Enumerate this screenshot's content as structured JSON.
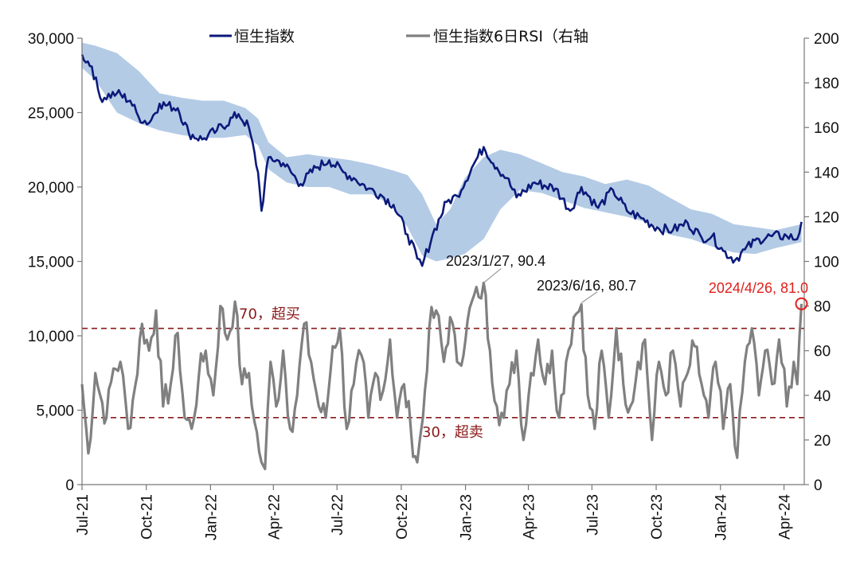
{
  "chart_data": {
    "type": "line",
    "title": "",
    "legend": [
      {
        "name": "恒生指数",
        "color": "#0b1a7a"
      },
      {
        "name": "恒生指数6日RSI（右轴",
        "color": "#808080"
      }
    ],
    "legend_position": "top-center",
    "x_axis": {
      "ticks": [
        "Jul-21",
        "Oct-21",
        "Jan-22",
        "Apr-22",
        "Jul-22",
        "Oct-22",
        "Jan-23",
        "Apr-23",
        "Jul-23",
        "Oct-23",
        "Jan-24",
        "Apr-24"
      ],
      "range": [
        "2021-07-01",
        "2024-04-30"
      ]
    },
    "left_axis": {
      "ylim": [
        0,
        30000
      ],
      "ticks": [
        "0",
        "5,000",
        "10,000",
        "15,000",
        "20,000",
        "25,000",
        "30,000"
      ]
    },
    "right_axis": {
      "ylim": [
        0,
        200
      ],
      "ticks": [
        "0",
        "20",
        "40",
        "60",
        "80",
        "100",
        "120",
        "140",
        "160",
        "180",
        "200"
      ]
    },
    "series": [
      {
        "name": "恒生指数",
        "axis": "left",
        "color": "#0b1a7a",
        "x": [
          "2021-07-01",
          "2021-07-15",
          "2021-07-27",
          "2021-08-20",
          "2021-09-08",
          "2021-09-20",
          "2021-10-05",
          "2021-10-20",
          "2021-11-15",
          "2021-12-01",
          "2021-12-20",
          "2022-01-10",
          "2022-02-10",
          "2022-02-25",
          "2022-03-10",
          "2022-03-15",
          "2022-03-25",
          "2022-04-15",
          "2022-05-10",
          "2022-06-01",
          "2022-06-20",
          "2022-07-10",
          "2022-07-25",
          "2022-08-15",
          "2022-09-01",
          "2022-09-20",
          "2022-10-10",
          "2022-10-24",
          "2022-10-31",
          "2022-11-15",
          "2022-12-05",
          "2022-12-20",
          "2023-01-10",
          "2023-01-27",
          "2023-02-15",
          "2023-03-01",
          "2023-03-15",
          "2023-04-10",
          "2023-05-10",
          "2023-05-31",
          "2023-06-16",
          "2023-07-10",
          "2023-07-31",
          "2023-08-20",
          "2023-09-10",
          "2023-10-05",
          "2023-10-25",
          "2023-11-15",
          "2023-12-05",
          "2023-12-20",
          "2024-01-05",
          "2024-01-22",
          "2024-02-05",
          "2024-02-25",
          "2024-03-15",
          "2024-04-05",
          "2024-04-20",
          "2024-04-26"
        ],
        "values": [
          28900,
          28100,
          26000,
          26300,
          25800,
          24700,
          24300,
          25600,
          25300,
          23600,
          23200,
          23800,
          24900,
          24000,
          21000,
          18400,
          22000,
          21600,
          20200,
          21300,
          21800,
          21000,
          20600,
          19900,
          19500,
          18800,
          16800,
          15200,
          14700,
          16800,
          19000,
          19400,
          21300,
          22690,
          21300,
          20600,
          19300,
          20300,
          19900,
          18400,
          20000,
          18600,
          19800,
          18400,
          17900,
          17200,
          17100,
          17600,
          16600,
          16700,
          15700,
          15100,
          15800,
          16500,
          16700,
          16700,
          16500,
          17650
        ]
      },
      {
        "name": "恒生指数6日RSI（右轴",
        "axis": "right",
        "color": "#808080",
        "x": [
          "2021-07-01",
          "2021-07-10",
          "2021-07-20",
          "2021-07-27",
          "2021-08-05",
          "2021-08-15",
          "2021-08-25",
          "2021-09-05",
          "2021-09-15",
          "2021-09-25",
          "2021-10-05",
          "2021-10-15",
          "2021-10-25",
          "2021-11-05",
          "2021-11-15",
          "2021-11-25",
          "2021-12-05",
          "2021-12-15",
          "2021-12-25",
          "2022-01-05",
          "2022-01-15",
          "2022-01-25",
          "2022-02-05",
          "2022-02-15",
          "2022-02-25",
          "2022-03-05",
          "2022-03-15",
          "2022-03-20",
          "2022-03-28",
          "2022-04-05",
          "2022-04-15",
          "2022-04-25",
          "2022-05-05",
          "2022-05-15",
          "2022-05-25",
          "2022-06-05",
          "2022-06-15",
          "2022-06-25",
          "2022-07-05",
          "2022-07-15",
          "2022-07-25",
          "2022-08-05",
          "2022-08-15",
          "2022-08-25",
          "2022-09-05",
          "2022-09-15",
          "2022-09-25",
          "2022-10-05",
          "2022-10-15",
          "2022-10-24",
          "2022-11-01",
          "2022-11-10",
          "2022-11-20",
          "2022-12-01",
          "2022-12-10",
          "2022-12-20",
          "2023-01-01",
          "2023-01-10",
          "2023-01-20",
          "2023-01-27",
          "2023-02-05",
          "2023-02-15",
          "2023-02-25",
          "2023-03-05",
          "2023-03-15",
          "2023-03-25",
          "2023-04-05",
          "2023-04-15",
          "2023-04-25",
          "2023-05-05",
          "2023-05-15",
          "2023-05-25",
          "2023-06-05",
          "2023-06-16",
          "2023-06-25",
          "2023-07-05",
          "2023-07-15",
          "2023-07-25",
          "2023-08-05",
          "2023-08-15",
          "2023-08-25",
          "2023-09-05",
          "2023-09-15",
          "2023-09-25",
          "2023-10-05",
          "2023-10-15",
          "2023-10-25",
          "2023-11-05",
          "2023-11-15",
          "2023-11-25",
          "2023-12-05",
          "2023-12-15",
          "2023-12-25",
          "2024-01-05",
          "2024-01-15",
          "2024-01-25",
          "2024-02-05",
          "2024-02-15",
          "2024-02-25",
          "2024-03-05",
          "2024-03-15",
          "2024-03-25",
          "2024-04-05",
          "2024-04-15",
          "2024-04-20",
          "2024-04-26"
        ],
        "values": [
          45,
          14,
          50,
          40,
          30,
          52,
          55,
          25,
          44,
          72,
          60,
          78,
          35,
          45,
          68,
          30,
          25,
          48,
          60,
          40,
          80,
          65,
          82,
          45,
          50,
          28,
          10,
          7,
          55,
          35,
          60,
          25,
          40,
          72,
          55,
          35,
          30,
          62,
          70,
          25,
          45,
          58,
          30,
          50,
          42,
          65,
          30,
          45,
          24,
          10,
          30,
          70,
          78,
          55,
          75,
          55,
          65,
          82,
          84,
          90.4,
          60,
          35,
          30,
          45,
          60,
          20,
          50,
          65,
          45,
          60,
          30,
          55,
          75,
          80.7,
          40,
          25,
          60,
          30,
          70,
          45,
          35,
          55,
          65,
          20,
          55,
          40,
          60,
          35,
          50,
          62,
          45,
          30,
          55,
          25,
          45,
          12,
          55,
          70,
          40,
          60,
          45,
          65,
          35,
          55,
          45,
          81.0
        ]
      }
    ],
    "band": {
      "axis": "left",
      "color": "#b4cbe6",
      "x": [
        "2021-07-01",
        "2021-07-20",
        "2021-08-20",
        "2021-09-20",
        "2021-10-20",
        "2021-11-20",
        "2021-12-20",
        "2022-01-20",
        "2022-02-20",
        "2022-03-10",
        "2022-03-25",
        "2022-04-20",
        "2022-05-20",
        "2022-06-20",
        "2022-07-20",
        "2022-08-20",
        "2022-09-20",
        "2022-10-10",
        "2022-10-31",
        "2022-11-20",
        "2022-12-10",
        "2022-12-31",
        "2023-01-27",
        "2023-02-20",
        "2023-03-20",
        "2023-04-20",
        "2023-05-20",
        "2023-06-20",
        "2023-07-20",
        "2023-08-20",
        "2023-09-20",
        "2023-10-20",
        "2023-11-20",
        "2023-12-20",
        "2024-01-20",
        "2024-02-20",
        "2024-03-20",
        "2024-04-26"
      ],
      "upper": [
        29700,
        29500,
        29000,
        27800,
        26300,
        26000,
        25800,
        25800,
        25300,
        24600,
        23000,
        22000,
        22200,
        22000,
        21800,
        21500,
        21100,
        20800,
        19500,
        17500,
        18500,
        20600,
        22000,
        22500,
        22200,
        21600,
        21000,
        20700,
        20200,
        20500,
        20100,
        19300,
        18500,
        18200,
        17500,
        17300,
        17100,
        17500
      ],
      "lower": [
        28000,
        27200,
        25000,
        24300,
        23800,
        23500,
        23300,
        23300,
        23500,
        22800,
        21200,
        20300,
        20000,
        20000,
        19500,
        19500,
        18700,
        17300,
        15400,
        15000,
        15200,
        15500,
        16500,
        18500,
        19800,
        19600,
        19100,
        18600,
        18300,
        18000,
        17600,
        16800,
        16500,
        16000,
        15600,
        15500,
        15900,
        16300
      ]
    },
    "thresholds": [
      {
        "value": 70,
        "label": "70，超买",
        "color": "#8b1a1a"
      },
      {
        "value": 30,
        "label": "30，超卖",
        "color": "#8b1a1a"
      }
    ],
    "annotations": [
      {
        "text": "2023/1/27, 90.4",
        "x": "2023-01-27",
        "y": 90.4,
        "color": "#111111"
      },
      {
        "text": "2023/6/16, 80.7",
        "x": "2023-06-16",
        "y": 80.7,
        "color": "#111111"
      },
      {
        "text": "2024/4/26, 81.0",
        "x": "2024-04-26",
        "y": 81.0,
        "color": "#e0201a"
      }
    ],
    "grid": false
  }
}
